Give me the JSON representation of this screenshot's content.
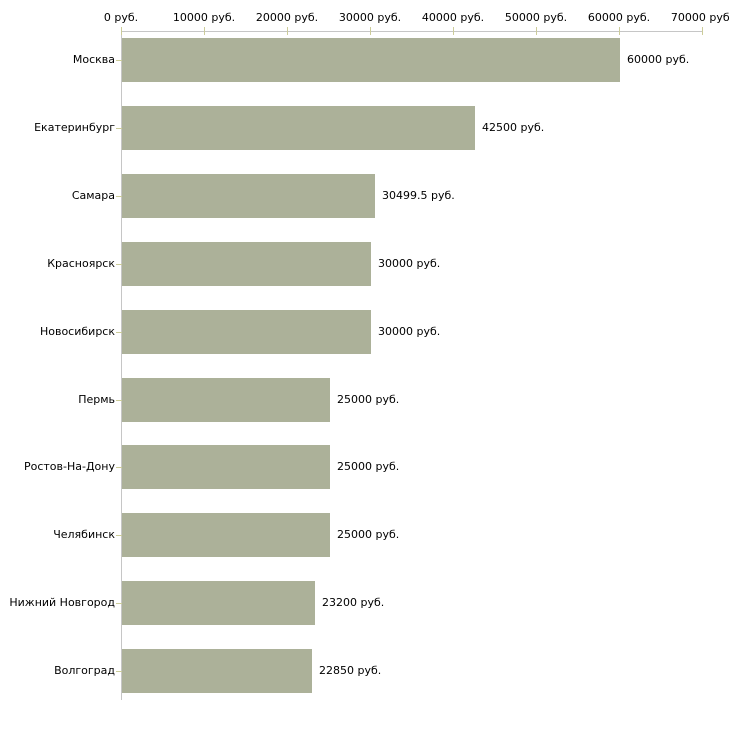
{
  "chart_data": {
    "type": "bar",
    "orientation": "horizontal",
    "title": "",
    "xlabel": "",
    "ylabel": "",
    "categories": [
      "Москва",
      "Екатеринбург",
      "Самара",
      "Красноярск",
      "Новосибирск",
      "Пермь",
      "Ростов-На-Дону",
      "Челябинск",
      "Нижний Новгород",
      "Волгоград"
    ],
    "values": [
      60000,
      42500,
      30499.5,
      30000,
      30000,
      25000,
      25000,
      25000,
      23200,
      22850
    ],
    "value_labels": [
      "60000 руб.",
      "42500 руб.",
      "30499.5 руб.",
      "30000 руб.",
      "30000 руб.",
      "25000 руб.",
      "25000 руб.",
      "25000 руб.",
      "23200 руб.",
      "22850 руб."
    ],
    "x_axis": {
      "position": "top",
      "tick_values": [
        0,
        10000,
        20000,
        30000,
        40000,
        50000,
        60000,
        70000
      ],
      "tick_labels": [
        "0 руб.",
        "10000 руб.",
        "20000 руб.",
        "30000 руб.",
        "40000 руб.",
        "50000 руб.",
        "60000 руб.",
        "70000 руб."
      ]
    },
    "xlim": [
      0,
      70000
    ],
    "grid": false,
    "legend": false,
    "colors": {
      "bar_fill": "#acb199",
      "axis_line": "#c6c6c6",
      "tick_mark": "#cccc99",
      "text": "#000000",
      "background": "#ffffff"
    }
  }
}
